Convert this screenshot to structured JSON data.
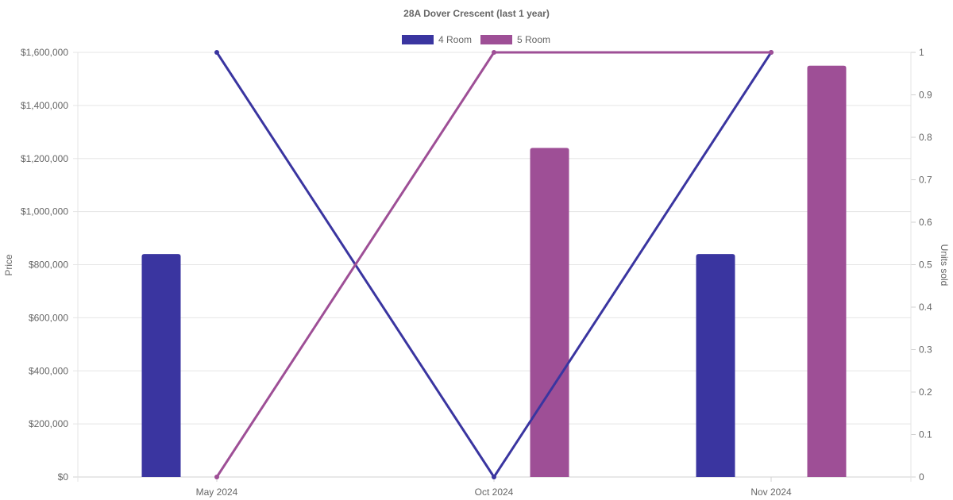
{
  "chart_data": {
    "type": "bar",
    "title": "28A Dover Crescent (last 1 year)",
    "categories": [
      "May 2024",
      "Oct 2024",
      "Nov 2024"
    ],
    "y_left": {
      "label": "Price",
      "range": [
        0,
        1600000
      ],
      "ticks": [
        "$0",
        "$200,000",
        "$400,000",
        "$600,000",
        "$800,000",
        "$1,000,000",
        "$1,200,000",
        "$1,400,000",
        "$1,600,000"
      ]
    },
    "y_right": {
      "label": "Units sold",
      "range": [
        0,
        1
      ],
      "ticks": [
        "0",
        "0.1",
        "0.2",
        "0.3",
        "0.4",
        "0.5",
        "0.6",
        "0.7",
        "0.8",
        "0.9",
        "1"
      ]
    },
    "grid": true,
    "legend_position": "top-center",
    "series": [
      {
        "name": "4 Room",
        "color": "#3a35a0",
        "price": [
          840000,
          null,
          840000
        ],
        "units_sold": [
          1,
          0,
          1
        ]
      },
      {
        "name": "5 Room",
        "color": "#9e4f96",
        "price": [
          null,
          1240000,
          1550000
        ],
        "units_sold": [
          0,
          1,
          1
        ]
      }
    ]
  }
}
